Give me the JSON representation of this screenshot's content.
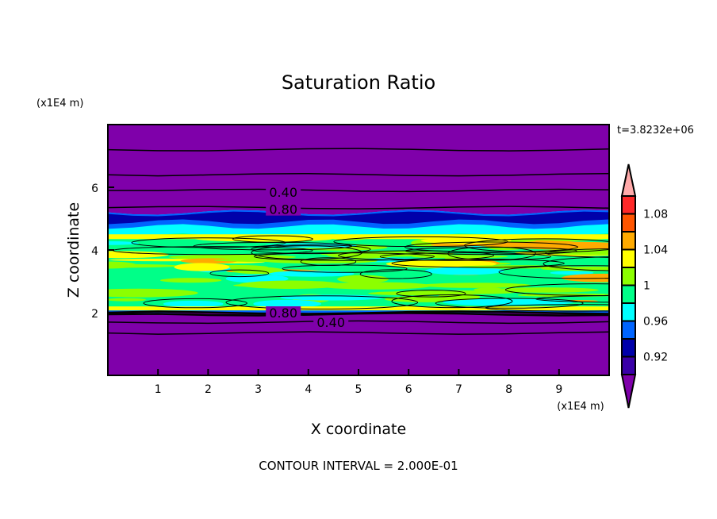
{
  "chart_data": {
    "type": "heatmap",
    "title": "Saturation Ratio",
    "xlabel": "X coordinate",
    "ylabel": "Z coordinate",
    "x_units": "(x1E4 m)",
    "y_units": "(x1E4 m)",
    "xlim": [
      0,
      10
    ],
    "ylim": [
      0,
      8
    ],
    "x_ticks": [
      "1",
      "2",
      "3",
      "4",
      "5",
      "6",
      "7",
      "8",
      "9"
    ],
    "y_ticks": [
      "2",
      "4",
      "6"
    ],
    "time_label": "t=3.8232e+06",
    "footer": "CONTOUR INTERVAL = 2.000E-01",
    "contour_labels": [
      {
        "text": "0.40",
        "x": 3.5,
        "z": 5.85
      },
      {
        "text": "0.80",
        "x": 3.5,
        "z": 5.3
      },
      {
        "text": "0.80",
        "x": 3.5,
        "z": 2.0
      },
      {
        "text": "0.40",
        "x": 3.5,
        "z": 1.7
      }
    ],
    "colorbar": {
      "levels": [
        0.9,
        0.92,
        0.94,
        0.96,
        0.98,
        1.0,
        1.02,
        1.04,
        1.06,
        1.08,
        1.1
      ],
      "tick_labels": [
        {
          "text": "1.08",
          "value": 1.08
        },
        {
          "text": "1.04",
          "value": 1.04
        },
        {
          "text": "1",
          "value": 1.0
        },
        {
          "text": "0.96",
          "value": 0.96
        },
        {
          "text": "0.92",
          "value": 0.92
        }
      ],
      "colors": [
        "#3a00a8",
        "#0000aa",
        "#0064ff",
        "#00ffff",
        "#00ff88",
        "#8cff00",
        "#ffff00",
        "#ffaa00",
        "#ff5500",
        "#ff2828"
      ],
      "over_color": "#ffaaaa",
      "under_color": "#7f00aa"
    },
    "field_summary": {
      "background_value_below": 0.9,
      "moist_layer_z": [
        2.0,
        5.3
      ],
      "dry_band_z": [
        4.6,
        5.1
      ]
    }
  }
}
